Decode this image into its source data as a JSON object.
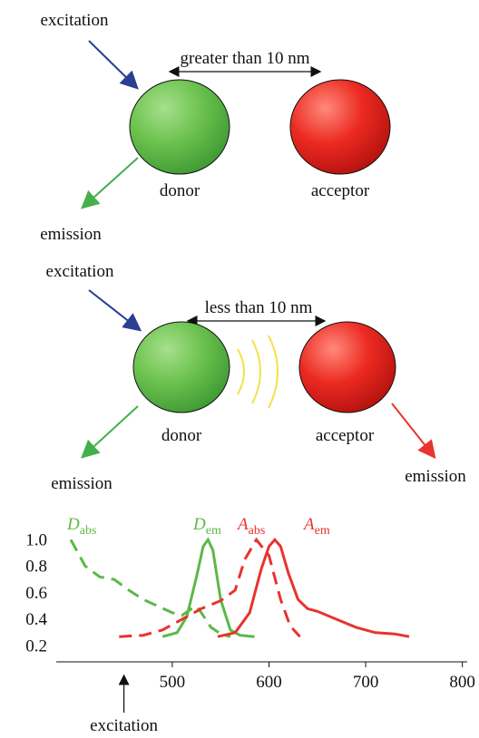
{
  "panels": [
    {
      "excitation": "excitation",
      "distance": "greater than 10 nm",
      "donor": "donor",
      "acceptor": "acceptor",
      "emission": "emission"
    },
    {
      "excitation": "excitation",
      "distance": "less than 10 nm",
      "donor": "donor",
      "acceptor": "acceptor",
      "donor_emission": "emission",
      "acceptor_emission": "emission"
    }
  ],
  "chart_data": {
    "type": "line",
    "xlim": [
      380,
      805
    ],
    "xticks": [
      500,
      600,
      700,
      800
    ],
    "ylim": [
      0.08,
      1.07
    ],
    "yticks": [
      0.2,
      0.4,
      0.6,
      0.8,
      {
        "value": 1,
        "label": "1.0"
      }
    ],
    "annotation": {
      "text": "excitation",
      "x": 450
    },
    "series": [
      {
        "name": "D",
        "subscript": "abs",
        "color": "#5cb848",
        "dash": true,
        "x": [
          395,
          410,
          425,
          440,
          455,
          470,
          485,
          500,
          510,
          520,
          525,
          530,
          540,
          550,
          560
        ],
        "values": [
          1.0,
          0.8,
          0.72,
          0.7,
          0.62,
          0.55,
          0.5,
          0.45,
          0.43,
          0.48,
          0.5,
          0.45,
          0.34,
          0.29,
          0.27
        ]
      },
      {
        "name": "D",
        "subscript": "em",
        "color": "#5cb848",
        "dash": false,
        "x": [
          490,
          505,
          515,
          525,
          532,
          537,
          542,
          550,
          560,
          570,
          585
        ],
        "values": [
          0.27,
          0.3,
          0.42,
          0.72,
          0.95,
          1.0,
          0.92,
          0.55,
          0.32,
          0.28,
          0.27
        ]
      },
      {
        "name": "A",
        "subscript": "abs",
        "color": "#e8332e",
        "dash": true,
        "x": [
          445,
          470,
          490,
          510,
          530,
          550,
          565,
          575,
          587,
          600,
          612,
          622,
          632
        ],
        "values": [
          0.27,
          0.28,
          0.32,
          0.4,
          0.48,
          0.54,
          0.62,
          0.85,
          1.0,
          0.88,
          0.55,
          0.35,
          0.27
        ]
      },
      {
        "name": "A",
        "subscript": "em",
        "color": "#e8332e",
        "dash": false,
        "x": [
          547,
          565,
          580,
          592,
          600,
          606,
          612,
          620,
          630,
          640,
          650,
          670,
          690,
          710,
          730,
          745
        ],
        "values": [
          0.27,
          0.3,
          0.45,
          0.78,
          0.95,
          1.0,
          0.95,
          0.75,
          0.55,
          0.48,
          0.46,
          0.4,
          0.34,
          0.3,
          0.29,
          0.27
        ]
      }
    ]
  }
}
